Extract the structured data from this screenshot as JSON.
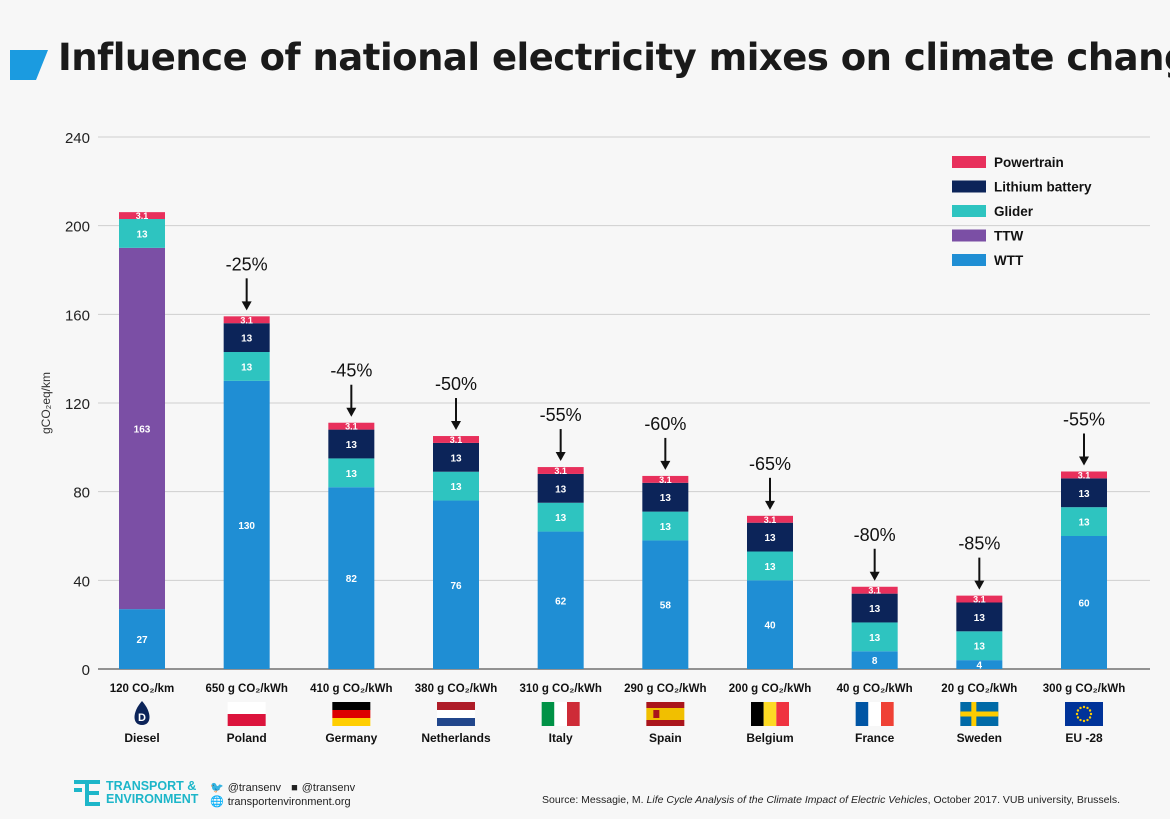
{
  "title": "Influence of national electricity mixes on climate change",
  "colors": {
    "WTT": "#1f8ed4",
    "TTW": "#7b4fa5",
    "Glider": "#2ec4c0",
    "Lithium battery": "#0c2459",
    "Powertrain": "#e8305c",
    "title_mark": "#1b9be0",
    "grid": "#cfcfcf"
  },
  "chart_data": {
    "type": "bar",
    "stacked": true,
    "ylabel": "gCO₂eq/km",
    "ylim": [
      0,
      240
    ],
    "yticks": [
      0,
      40,
      80,
      120,
      160,
      200,
      240
    ],
    "grid": true,
    "legend_position": "top-right",
    "legend_order": [
      "Powertrain",
      "Lithium battery",
      "Glider",
      "TTW",
      "WTT"
    ],
    "categories": [
      "Diesel",
      "Poland",
      "Germany",
      "Netherlands",
      "Italy",
      "Spain",
      "Belgium",
      "France",
      "Sweden",
      "EU -28"
    ],
    "intensity_labels": [
      "120 CO₂/km",
      "650 g CO₂/kWh",
      "410 g CO₂/kWh",
      "380 g CO₂/kWh",
      "310 g CO₂/kWh",
      "290 g CO₂/kWh",
      "200 g CO₂/kWh",
      "40 g CO₂/kWh",
      "20 g CO₂/kWh",
      "300 g CO₂/kWh"
    ],
    "reductions": [
      "",
      "-25%",
      "-45%",
      "-50%",
      "-55%",
      "-60%",
      "-65%",
      "-80%",
      "-85%",
      "-55%"
    ],
    "series": [
      {
        "name": "WTT",
        "values": [
          27,
          130,
          82,
          76,
          62,
          58,
          40,
          8,
          4,
          60
        ]
      },
      {
        "name": "TTW",
        "values": [
          163,
          0,
          0,
          0,
          0,
          0,
          0,
          0,
          0,
          0
        ]
      },
      {
        "name": "Glider",
        "values": [
          13,
          13,
          13,
          13,
          13,
          13,
          13,
          13,
          13,
          13
        ]
      },
      {
        "name": "Lithium battery",
        "values": [
          0,
          13,
          13,
          13,
          13,
          13,
          13,
          13,
          13,
          13
        ]
      },
      {
        "name": "Powertrain",
        "values": [
          3.1,
          3.1,
          3.1,
          3.1,
          3.1,
          3.1,
          3.1,
          3.1,
          3.1,
          3.1
        ]
      }
    ]
  },
  "footer": {
    "logo_line1": "TRANSPORT &",
    "logo_line2": "ENVIRONMENT",
    "twitter": "@transenv",
    "facebook": "@transenv",
    "website": "transportenvironment.org",
    "source_prefix": "Source: Messagie, M. ",
    "source_title": "Life Cycle Analysis of the Climate Impact of Electric Vehicles",
    "source_suffix": ", October 2017. VUB university, Brussels."
  }
}
